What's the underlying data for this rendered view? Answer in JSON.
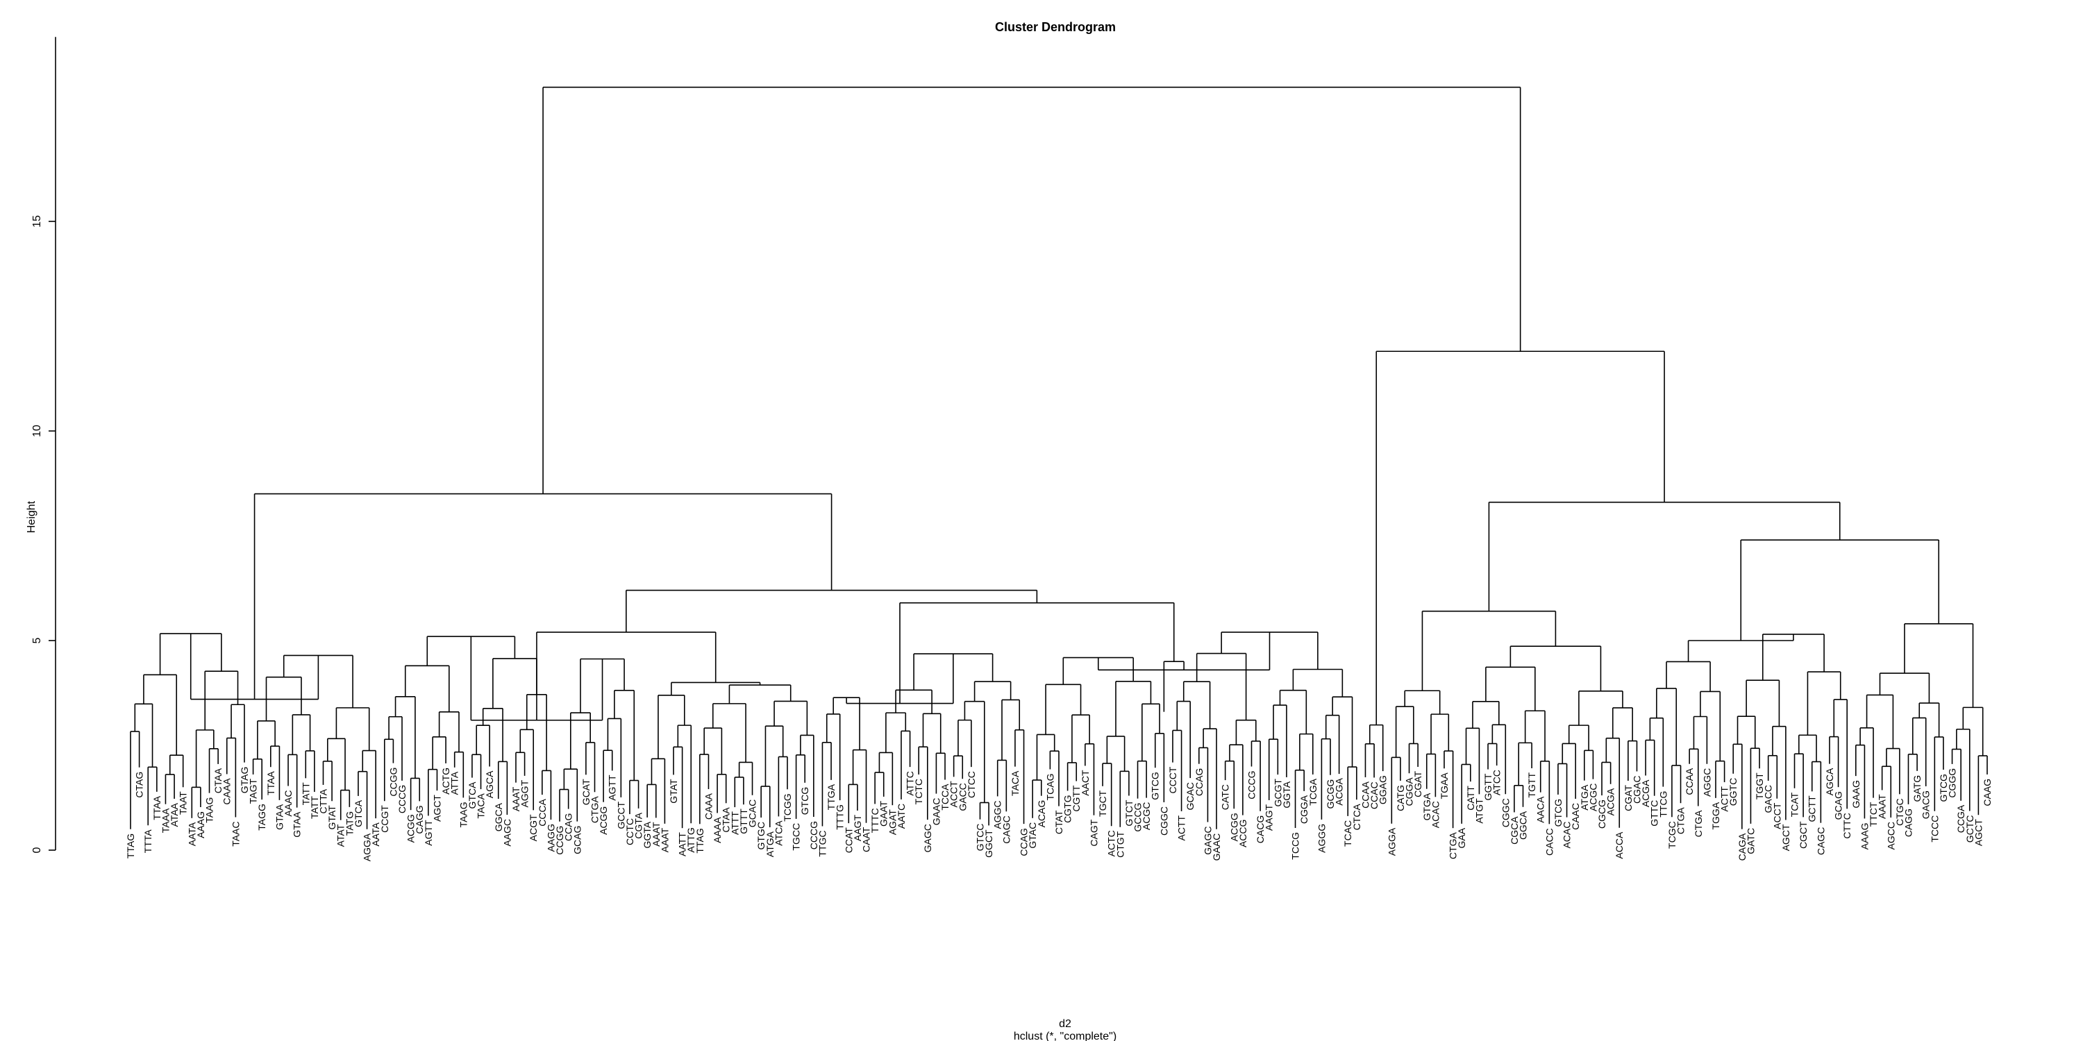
{
  "chart_data": {
    "type": "dendrogram",
    "title": "Cluster Dendrogram",
    "xlabel": "d2",
    "sublabel": "hclust (*, \"complete\")",
    "ylabel": "Height",
    "ylim": [
      0,
      18.5
    ],
    "y_ticks": [
      0,
      5,
      10,
      15
    ],
    "merge_heights_major": [
      {
        "name": "root",
        "height": 18.2
      },
      {
        "name": "left-main",
        "height": 8.5
      },
      {
        "name": "right-main",
        "height": 11.9
      },
      {
        "name": "right-sub-1",
        "height": 8.3
      },
      {
        "name": "right-sub-2",
        "height": 7.4
      },
      {
        "name": "right-sub-3",
        "height": 5.4
      },
      {
        "name": "right-sub-4",
        "height": 5.2
      },
      {
        "name": "right-sub-5",
        "height": 5.0
      },
      {
        "name": "left-sub-1",
        "height": 6.2
      },
      {
        "name": "left-sub-2",
        "height": 5.9
      },
      {
        "name": "left-sub-3",
        "height": 5.2
      },
      {
        "name": "left-sub-4",
        "height": 4.5
      },
      {
        "name": "left-sub-5",
        "height": 4.2
      },
      {
        "name": "left-sub-6",
        "height": 3.6
      },
      {
        "name": "right-sub-6",
        "height": 5.7
      },
      {
        "name": "right-sub-7",
        "height": 4.9
      }
    ],
    "leaves": [
      "TTAG",
      "CTAG",
      "TTTA",
      "TTAA",
      "TAAA",
      "ATAA",
      "TAAT",
      "AATA",
      "AAAG",
      "TAAG",
      "CTAA",
      "CAAA",
      "TAAC",
      "GTAG",
      "TAGT",
      "TAGG",
      "TTAA",
      "GTAA",
      "AAAC",
      "GTAA",
      "TATT",
      "TATT",
      "CTTA",
      "GTAT",
      "ATAT",
      "TATG",
      "GTCA",
      "AGGA",
      "AATA",
      "CCGT",
      "CCGG",
      "CCCG",
      "ACGG",
      "CAGG",
      "AGTT",
      "AGCT",
      "ACTG",
      "ATTA",
      "TAAG",
      "GTCA",
      "TACA",
      "AGCA",
      "GGCA",
      "AAGC",
      "AAAT",
      "AGGT",
      "ACGT",
      "CCCA",
      "AAGG",
      "CCGG",
      "CCAG",
      "GCAG",
      "GCAT",
      "CTGA",
      "ACGG",
      "AGTT",
      "GCCT",
      "CCTC",
      "CGTA",
      "GGTA",
      "AAAT",
      "AAAT",
      "GTAT",
      "AATT",
      "ATTG",
      "TTAG",
      "CAAA",
      "AAAA",
      "CTAA",
      "ATTT",
      "GTTT",
      "GCAC",
      "GTGC",
      "ATGA",
      "ATCA",
      "TCGG",
      "TGCC",
      "GTCG",
      "CCCG",
      "TTGC",
      "TTGA",
      "TTTG",
      "CCAT",
      "AAGT",
      "CAAT",
      "TTTC",
      "GAAT",
      "AGAT",
      "AATC",
      "ATTC",
      "TCTC",
      "GAGC",
      "GAAC",
      "TCCA",
      "ACCT",
      "GACC",
      "CTCC",
      "GTCC",
      "GGCT",
      "AGGC",
      "CAGC",
      "TACA",
      "CCAG",
      "GTAC",
      "ACAG",
      "TCAG",
      "CTAT",
      "CGTG",
      "CGTT",
      "AACT",
      "CAGT",
      "TGCT",
      "ACTC",
      "CTGT",
      "GTCT",
      "GCCG",
      "ACGC",
      "GTCG",
      "CGGC",
      "CCCT",
      "ACTT",
      "GCAC",
      "CCAG",
      "GAGC",
      "GAAC",
      "CATC",
      "ACGG",
      "ACCG",
      "CCCG",
      "CACG",
      "AAGT",
      "GCGT",
      "GGTA",
      "TCCG",
      "CGGA",
      "TCGA",
      "AGGG",
      "GCGG",
      "ACGA",
      "TCAC",
      "CTCA",
      "CCAA",
      "CCAC",
      "GGAG",
      "AGGA",
      "CATG",
      "CGGA",
      "CGAT",
      "GTGA",
      "ACAC",
      "TGAA",
      "CTGA",
      "GAA",
      "CATT",
      "ATGT",
      "GGTT",
      "ATCC",
      "CGGC",
      "CGCA",
      "GGCA",
      "TGTT",
      "AACA",
      "CACC",
      "GTCG",
      "ACAC",
      "CAAC",
      "ATGA",
      "ACGC",
      "CGCG",
      "ACGA",
      "ACCA",
      "CGAT",
      "CGAC",
      "ACGA",
      "GTTC",
      "TTCG",
      "TCGC",
      "CTGA",
      "CCAA",
      "CTGA",
      "AGGC",
      "TGGA",
      "ACTT",
      "GGTC",
      "CAGA",
      "GATC",
      "TGGT",
      "GACC",
      "ACCT",
      "AGCT",
      "TCAT",
      "CGCT",
      "GCTT",
      "CAGC",
      "AGCA",
      "GCAG",
      "CTTC",
      "GAAG",
      "AAAG",
      "TTCT",
      "AAAT",
      "AGCC",
      "CTGC",
      "CAGG",
      "GATG",
      "GACG",
      "TCCC",
      "GTCG",
      "CGGG",
      "CCGA",
      "GCTC",
      "AGCT",
      "CAAG"
    ]
  }
}
